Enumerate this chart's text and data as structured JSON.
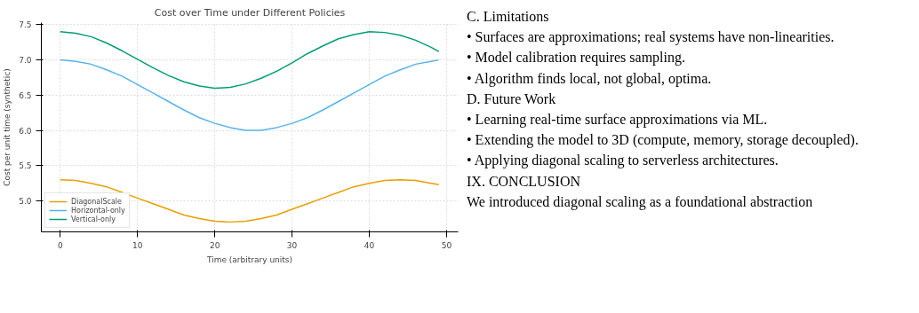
{
  "chart_data": {
    "type": "line",
    "title": "Cost over Time under Different Policies",
    "xlabel": "Time (arbitrary units)",
    "ylabel": "Cost per unit time (synthetic)",
    "x": [
      0,
      2,
      4,
      6,
      8,
      10,
      12,
      14,
      16,
      18,
      20,
      22,
      24,
      26,
      28,
      30,
      32,
      34,
      36,
      38,
      40,
      42,
      44,
      46,
      48,
      49
    ],
    "series": [
      {
        "name": "DiagonalScale",
        "color": "#e69f00",
        "values": [
          5.3,
          5.29,
          5.25,
          5.2,
          5.12,
          5.04,
          4.96,
          4.88,
          4.8,
          4.75,
          4.71,
          4.7,
          4.71,
          4.75,
          4.8,
          4.88,
          4.96,
          5.04,
          5.12,
          5.2,
          5.25,
          5.29,
          5.3,
          5.29,
          5.25,
          5.23
        ]
      },
      {
        "name": "Horizontal-only",
        "color": "#56b4e9",
        "values": [
          7.0,
          6.98,
          6.94,
          6.86,
          6.77,
          6.65,
          6.53,
          6.41,
          6.29,
          6.18,
          6.1,
          6.04,
          6.0,
          6.0,
          6.04,
          6.1,
          6.18,
          6.29,
          6.41,
          6.53,
          6.65,
          6.77,
          6.86,
          6.94,
          6.98,
          7.0
        ]
      },
      {
        "name": "Vertical-only",
        "color": "#009e73",
        "values": [
          7.4,
          7.38,
          7.33,
          7.24,
          7.13,
          7.01,
          6.89,
          6.78,
          6.69,
          6.63,
          6.6,
          6.61,
          6.66,
          6.74,
          6.84,
          6.96,
          7.09,
          7.2,
          7.3,
          7.36,
          7.4,
          7.39,
          7.35,
          7.28,
          7.18,
          7.12
        ]
      }
    ],
    "xlim": [
      -2.45,
      51.5
    ],
    "ylim": [
      4.56,
      7.53
    ],
    "xticks": [
      0,
      10,
      20,
      30,
      40,
      50
    ],
    "yticks": [
      {
        "value": 5.0,
        "label": "5.0"
      },
      {
        "value": 5.5,
        "label": "5.5"
      },
      {
        "value": 6.0,
        "label": "6.0"
      },
      {
        "value": 6.5,
        "label": "6.5"
      },
      {
        "value": 7.0,
        "label": "7.0"
      },
      {
        "value": 7.5,
        "label": "7.5"
      }
    ],
    "grid": true,
    "legend": "bottom left",
    "marker": "none",
    "line_style": "solid",
    "annotations": [
      "C. Limitations",
      "• Surfaces are approximations; real systems have non-linearities.",
      "• Model calibration requires sampling.",
      "• Algorithm finds local, not global, optima.",
      "D. Future Work",
      "• Learning real-time surface approximations via ML.",
      "• Extending the model to 3D (compute, memory, storage decoupled).",
      "• Applying diagonal scaling to serverless architectures.",
      "IX. CONCLUSION",
      "We introduced diagonal scaling as a foundational abstraction"
    ]
  }
}
